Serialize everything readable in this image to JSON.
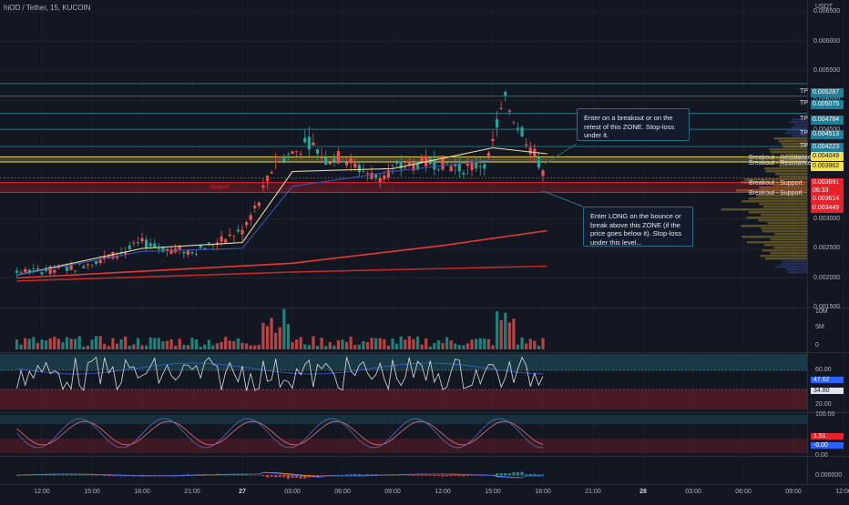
{
  "header": {
    "title": "hiOD / Tether, 15, KUCOIN",
    "quote_unit": "USDT"
  },
  "price_axis": {
    "ticks": [
      "0.006500",
      "0.006000",
      "0.005500",
      "0.005000",
      "0.004500",
      "0.004000",
      "0.003500",
      "0.003000",
      "0.002500",
      "0.002000",
      "0.001500"
    ]
  },
  "price_tags": [
    {
      "text": "0.005287",
      "color": "#1e7f98"
    },
    {
      "text": "0.005075",
      "color": "#1e7f98"
    },
    {
      "text": "0.004784",
      "color": "#1e7f98"
    },
    {
      "text": "0.004513",
      "color": "#1e7f98"
    },
    {
      "text": "0.004223",
      "color": "#1e7f98"
    },
    {
      "text": "0.004049",
      "color": "#f4e04d"
    },
    {
      "text": "0.003962",
      "color": "#f4e04d"
    },
    {
      "text": "0.003691",
      "color": "#e6222a"
    },
    {
      "text": "06:33",
      "color": "#e6222a"
    },
    {
      "text": "0.003614",
      "color": "#e6222a"
    },
    {
      "text": "0.003449",
      "color": "#e6222a"
    }
  ],
  "level_labels": {
    "tp": "TP",
    "breakout_resistance": "Breakout - Resistance",
    "breakout_support": "Breakout - Support",
    "support": "Support"
  },
  "notes": {
    "upper": "Enter on a breakout or on the retest of this ZONE. Stop-loss under it.",
    "lower": "Enter LONG on the bounce or break above this ZONE (if the price goes below it). Stop-loss under this level..."
  },
  "volume_axis": {
    "ticks": [
      "10M",
      "5M",
      "0"
    ]
  },
  "rsi_axis": {
    "ticks": [
      "60.00",
      "20.00"
    ],
    "values": [
      "47.62",
      "34.80"
    ]
  },
  "stoch_axis": {
    "ticks": [
      "100.00",
      "0.00"
    ],
    "values": [
      "1.51",
      "-0.00"
    ]
  },
  "macd_axis": {
    "ticks": [
      "0.000000"
    ]
  },
  "time_axis": {
    "labels": [
      {
        "t": "12:00",
        "bold": false
      },
      {
        "t": "15:00",
        "bold": false
      },
      {
        "t": "18:00",
        "bold": false
      },
      {
        "t": "21:00",
        "bold": false
      },
      {
        "t": "27",
        "bold": true
      },
      {
        "t": "03:00",
        "bold": false
      },
      {
        "t": "06:00",
        "bold": false
      },
      {
        "t": "09:00",
        "bold": false
      },
      {
        "t": "12:00",
        "bold": false
      },
      {
        "t": "15:00",
        "bold": false
      },
      {
        "t": "18:00",
        "bold": false
      },
      {
        "t": "21:00",
        "bold": false
      },
      {
        "t": "28",
        "bold": true
      },
      {
        "t": "03:00",
        "bold": false
      },
      {
        "t": "06:00",
        "bold": false
      },
      {
        "t": "09:00",
        "bold": false
      },
      {
        "t": "12:00",
        "bold": false
      }
    ]
  },
  "colors": {
    "up": "#26a69a",
    "down": "#ef5350",
    "bg": "#131722",
    "accent": "#1e7f98"
  },
  "chart_data": {
    "type": "candlestick",
    "title": "hiOD / Tether, 15, KUCOIN",
    "ylabel": "USDT",
    "ylim": [
      0.0015,
      0.0067
    ],
    "x_range": [
      "26 10:30",
      "28 13:30"
    ],
    "interval_minutes": 15,
    "tp_levels": [
      0.005287,
      0.005075,
      0.004784,
      0.004513,
      0.004223
    ],
    "resistance_zone": [
      0.003962,
      0.004049
    ],
    "support_zone": [
      0.003449,
      0.003614
    ],
    "last_price": 0.003691,
    "price_path": [
      [
        "26 10:30",
        0.0021
      ],
      [
        "26 12:00",
        0.00212
      ],
      [
        "26 14:00",
        0.00218
      ],
      [
        "26 15:30",
        0.00232
      ],
      [
        "26 17:00",
        0.00245
      ],
      [
        "26 18:00",
        0.0026
      ],
      [
        "26 19:00",
        0.0025
      ],
      [
        "26 21:00",
        0.00245
      ],
      [
        "26 22:30",
        0.0026
      ],
      [
        "27 00:00",
        0.0028
      ],
      [
        "27 01:00",
        0.0033
      ],
      [
        "27 02:00",
        0.004
      ],
      [
        "27 03:00",
        0.0041
      ],
      [
        "27 04:00",
        0.0043
      ],
      [
        "27 05:00",
        0.004
      ],
      [
        "27 06:00",
        0.00405
      ],
      [
        "27 07:00",
        0.00385
      ],
      [
        "27 08:00",
        0.0037
      ],
      [
        "27 09:00",
        0.00385
      ],
      [
        "27 10:00",
        0.0039
      ],
      [
        "27 11:00",
        0.00395
      ],
      [
        "27 12:00",
        0.00395
      ],
      [
        "27 13:00",
        0.00385
      ],
      [
        "27 14:00",
        0.0039
      ],
      [
        "27 14:45",
        0.004
      ],
      [
        "27 15:15",
        0.0046
      ],
      [
        "27 15:45",
        0.005
      ],
      [
        "27 16:15",
        0.0047
      ],
      [
        "27 16:45",
        0.0045
      ],
      [
        "27 17:15",
        0.0042
      ],
      [
        "27 17:45",
        0.00395
      ],
      [
        "27 18:15",
        0.0037
      ]
    ],
    "moving_averages": [
      {
        "color": "#e8e0a0",
        "points": [
          [
            "26 10:30",
            0.00205
          ],
          [
            "26 18:00",
            0.0025
          ],
          [
            "27 00:00",
            0.0026
          ],
          [
            "27 03:00",
            0.0038
          ],
          [
            "27 09:00",
            0.00385
          ],
          [
            "27 15:00",
            0.0042
          ],
          [
            "27 18:15",
            0.0041
          ]
        ]
      },
      {
        "color": "#3f51b5",
        "points": [
          [
            "26 10:30",
            0.00205
          ],
          [
            "26 18:00",
            0.00245
          ],
          [
            "27 00:00",
            0.0025
          ],
          [
            "27 03:00",
            0.00355
          ],
          [
            "27 09:00",
            0.0038
          ],
          [
            "27 15:00",
            0.004
          ],
          [
            "27 18:15",
            0.004
          ]
        ]
      },
      {
        "color": "#e53935",
        "points": [
          [
            "26 10:30",
            0.002
          ],
          [
            "27 03:00",
            0.00225
          ],
          [
            "27 12:00",
            0.00255
          ],
          [
            "27 18:15",
            0.0028
          ]
        ]
      },
      {
        "color": "#c62828",
        "points": [
          [
            "26 10:30",
            0.00195
          ],
          [
            "27 03:00",
            0.0021
          ],
          [
            "27 18:15",
            0.0022
          ]
        ]
      }
    ]
  }
}
